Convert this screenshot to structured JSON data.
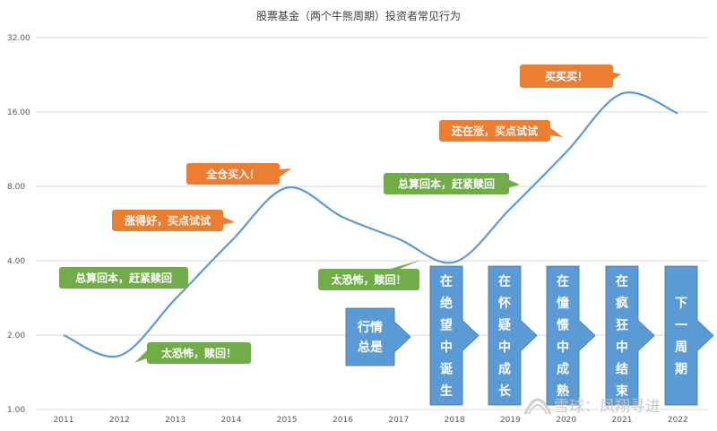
{
  "chart_data": {
    "type": "line",
    "title": "股票基金（两个牛熊周期）投资者常见行为",
    "xlabel": "",
    "ylabel": "",
    "y_scale": "log2",
    "ylim": [
      1,
      32
    ],
    "y_ticks": [
      1,
      2,
      4,
      8,
      16,
      32
    ],
    "y_tick_labels": [
      "1.00",
      "2.00",
      "4.00",
      "8.00",
      "16.00",
      "32.00"
    ],
    "categories": [
      "2011",
      "2012",
      "2013",
      "2014",
      "2015",
      "2016",
      "2017",
      "2018",
      "2019",
      "2020",
      "2021",
      "2022"
    ],
    "grid": true,
    "legend": "none",
    "series": [
      {
        "color": "#5B9BD5",
        "values": [
          2.0,
          1.65,
          2.8,
          4.8,
          7.9,
          6.0,
          4.9,
          3.95,
          6.5,
          11.0,
          19.0,
          15.8
        ]
      }
    ],
    "annotations": [
      {
        "text": "总算回本，赶紧赎回",
        "color": "#70AD47",
        "shape": "callout"
      },
      {
        "text": "太恐怖，赎回！",
        "color": "#70AD47",
        "shape": "callout"
      },
      {
        "text": "涨得好，买点试试",
        "color": "#ED7D31",
        "shape": "callout"
      },
      {
        "text": "全仓买入！",
        "color": "#ED7D31",
        "shape": "callout"
      },
      {
        "text": "太恐怖，赎回！",
        "color": "#70AD47",
        "shape": "callout"
      },
      {
        "text": "总算回本，赶紧赎回",
        "color": "#70AD47",
        "shape": "callout"
      },
      {
        "text": "还在涨，买点试试",
        "color": "#ED7D31",
        "shape": "callout"
      },
      {
        "text": "买买买！",
        "color": "#ED7D31",
        "shape": "callout"
      }
    ],
    "arrows": [
      {
        "lines": [
          "行情",
          "总是"
        ],
        "color": "#5B9BD5"
      },
      {
        "lines": [
          "在",
          "绝",
          "望",
          "中",
          "诞",
          "生"
        ],
        "color": "#5B9BD5"
      },
      {
        "lines": [
          "在",
          "怀",
          "疑",
          "中",
          "成",
          "长"
        ],
        "color": "#5B9BD5"
      },
      {
        "lines": [
          "在",
          "憧",
          "憬",
          "中",
          "成",
          "熟"
        ],
        "color": "#5B9BD5"
      },
      {
        "lines": [
          "在",
          "疯",
          "狂",
          "中",
          "结",
          "束"
        ],
        "color": "#5B9BD5"
      },
      {
        "lines": [
          "下",
          "一",
          "周",
          "期"
        ],
        "color": "#5B9BD5"
      }
    ]
  },
  "watermark": {
    "text": "雪球：凤翔寻进",
    "icon": "snowball-icon"
  }
}
